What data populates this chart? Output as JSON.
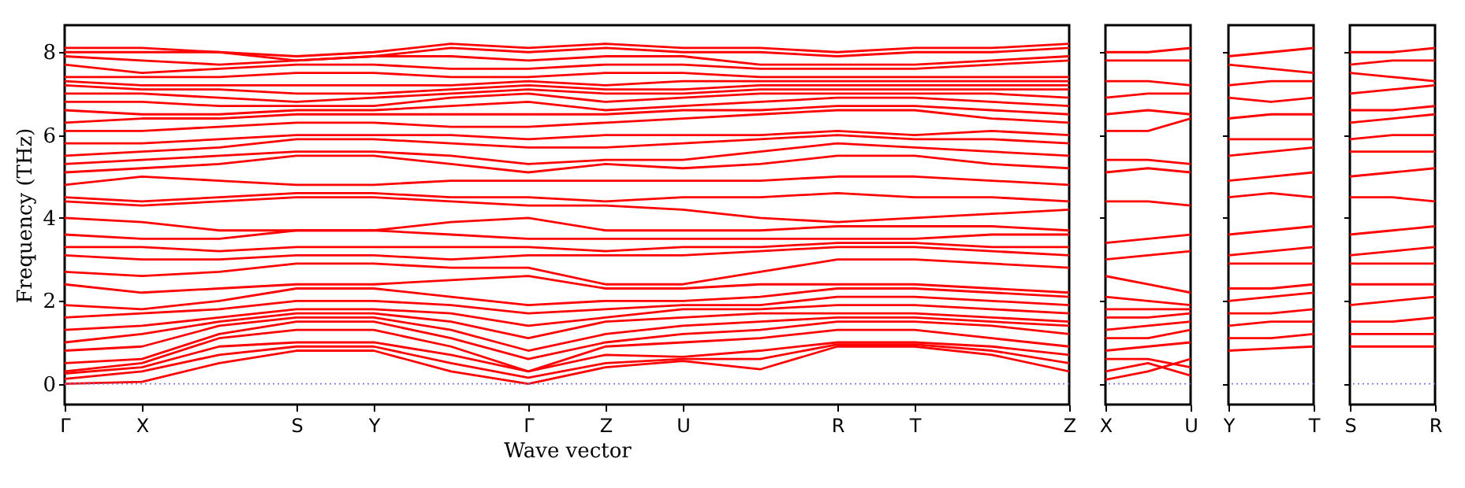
{
  "chart_data": [
    {
      "type": "line",
      "ylabel": "Frequency (THz)",
      "xlabel": "Wave vector",
      "ylim": [
        -0.5,
        8.65
      ],
      "yticks": [
        0,
        2,
        4,
        6,
        8
      ],
      "categories": [
        "Γ",
        "X",
        null,
        "S",
        "Y",
        null,
        "Γ",
        "Z",
        "U",
        null,
        "R",
        "T",
        null,
        "Z"
      ],
      "ref_lines": [
        {
          "axis": "y",
          "value": 0,
          "color": "#7777dd",
          "line_style": "dotted"
        }
      ],
      "series": [
        {
          "color": "#ff0000",
          "values": [
            0,
            0.05,
            0.5,
            0.8,
            0.8,
            0.3,
            0,
            0.4,
            0.55,
            0.35,
            0.9,
            0.9,
            0.7,
            0.3
          ]
        },
        {
          "color": "#ff0000",
          "values": [
            0.12,
            0.3,
            0.7,
            0.9,
            0.9,
            0.5,
            0.15,
            0.5,
            0.6,
            0.6,
            0.95,
            0.95,
            0.8,
            0.5
          ]
        },
        {
          "color": "#ff0000",
          "values": [
            0.25,
            0.4,
            0.9,
            1.0,
            1.0,
            0.7,
            0.3,
            0.7,
            0.65,
            0.8,
            1.0,
            1.0,
            0.9,
            0.7
          ]
        },
        {
          "color": "#ff0000",
          "values": [
            0.3,
            0.5,
            1.1,
            1.3,
            1.3,
            0.9,
            0.3,
            0.9,
            1.0,
            1.1,
            1.3,
            1.3,
            1.1,
            0.9
          ]
        },
        {
          "color": "#ff0000",
          "values": [
            0.5,
            0.6,
            1.2,
            1.5,
            1.5,
            1.1,
            0.6,
            1.0,
            1.2,
            1.3,
            1.5,
            1.5,
            1.4,
            1.2
          ]
        },
        {
          "color": "#ff0000",
          "values": [
            0.8,
            0.9,
            1.4,
            1.6,
            1.6,
            1.3,
            0.8,
            1.2,
            1.4,
            1.5,
            1.6,
            1.6,
            1.5,
            1.4
          ]
        },
        {
          "color": "#ff0000",
          "values": [
            1.0,
            1.2,
            1.5,
            1.7,
            1.7,
            1.5,
            1.1,
            1.5,
            1.6,
            1.7,
            1.7,
            1.7,
            1.6,
            1.5
          ]
        },
        {
          "color": "#ff0000",
          "values": [
            1.3,
            1.4,
            1.6,
            1.8,
            1.8,
            1.7,
            1.4,
            1.6,
            1.8,
            1.8,
            1.9,
            1.9,
            1.8,
            1.7
          ]
        },
        {
          "color": "#ff0000",
          "values": [
            1.6,
            1.7,
            1.8,
            2.0,
            2.0,
            1.9,
            1.7,
            1.8,
            1.9,
            1.9,
            2.1,
            2.1,
            2.0,
            1.9
          ]
        },
        {
          "color": "#ff0000",
          "values": [
            1.9,
            1.8,
            2.0,
            2.3,
            2.3,
            2.1,
            1.9,
            2.0,
            2.0,
            2.1,
            2.3,
            2.3,
            2.2,
            2.1
          ]
        },
        {
          "color": "#ff0000",
          "values": [
            2.4,
            2.2,
            2.3,
            2.4,
            2.4,
            2.5,
            2.6,
            2.3,
            2.3,
            2.4,
            2.4,
            2.4,
            2.3,
            2.2
          ]
        },
        {
          "color": "#ff0000",
          "values": [
            2.7,
            2.6,
            2.7,
            2.9,
            2.9,
            2.8,
            2.8,
            2.4,
            2.4,
            2.7,
            3.0,
            3.0,
            2.9,
            2.8
          ]
        },
        {
          "color": "#ff0000",
          "values": [
            3.1,
            3.0,
            3.0,
            3.1,
            3.1,
            3.0,
            3.1,
            3.1,
            3.1,
            3.2,
            3.3,
            3.3,
            3.2,
            3.1
          ]
        },
        {
          "color": "#ff0000",
          "values": [
            3.3,
            3.3,
            3.2,
            3.3,
            3.3,
            3.3,
            3.3,
            3.2,
            3.3,
            3.3,
            3.4,
            3.4,
            3.3,
            3.3
          ]
        },
        {
          "color": "#ff0000",
          "values": [
            3.6,
            3.5,
            3.5,
            3.7,
            3.7,
            3.6,
            3.5,
            3.5,
            3.5,
            3.5,
            3.5,
            3.5,
            3.6,
            3.6
          ]
        },
        {
          "color": "#ff0000",
          "values": [
            4.0,
            3.9,
            3.7,
            3.7,
            3.7,
            3.9,
            4.0,
            3.7,
            3.7,
            3.7,
            3.8,
            3.8,
            3.8,
            3.7
          ]
        },
        {
          "color": "#ff0000",
          "values": [
            4.4,
            4.3,
            4.4,
            4.5,
            4.5,
            4.4,
            4.3,
            4.3,
            4.2,
            4.0,
            3.9,
            4.0,
            4.1,
            4.2
          ]
        },
        {
          "color": "#ff0000",
          "values": [
            4.5,
            4.4,
            4.5,
            4.6,
            4.6,
            4.5,
            4.5,
            4.4,
            4.5,
            4.5,
            4.6,
            4.5,
            4.5,
            4.4
          ]
        },
        {
          "color": "#ff0000",
          "values": [
            4.8,
            5.0,
            4.9,
            4.8,
            4.8,
            4.9,
            4.9,
            4.9,
            4.9,
            4.9,
            5.0,
            5.0,
            4.9,
            4.8
          ]
        },
        {
          "color": "#ff0000",
          "values": [
            5.1,
            5.2,
            5.3,
            5.5,
            5.5,
            5.3,
            5.1,
            5.3,
            5.2,
            5.3,
            5.5,
            5.5,
            5.3,
            5.2
          ]
        },
        {
          "color": "#ff0000",
          "values": [
            5.3,
            5.4,
            5.5,
            5.6,
            5.6,
            5.5,
            5.3,
            5.4,
            5.4,
            5.6,
            5.8,
            5.7,
            5.6,
            5.5
          ]
        },
        {
          "color": "#ff0000",
          "values": [
            5.5,
            5.6,
            5.7,
            5.9,
            5.9,
            5.8,
            5.7,
            5.7,
            5.8,
            5.9,
            6.0,
            5.9,
            5.9,
            5.8
          ]
        },
        {
          "color": "#ff0000",
          "values": [
            5.8,
            5.8,
            5.9,
            6.0,
            6.0,
            6.0,
            5.9,
            6.0,
            6.0,
            6.0,
            6.1,
            6.0,
            6.1,
            6.0
          ]
        },
        {
          "color": "#ff0000",
          "values": [
            6.1,
            6.1,
            6.2,
            6.3,
            6.3,
            6.2,
            6.2,
            6.3,
            6.4,
            6.5,
            6.6,
            6.6,
            6.4,
            6.3
          ]
        },
        {
          "color": "#ff0000",
          "values": [
            6.3,
            6.4,
            6.4,
            6.5,
            6.5,
            6.5,
            6.5,
            6.5,
            6.6,
            6.6,
            6.7,
            6.7,
            6.6,
            6.5
          ]
        },
        {
          "color": "#ff0000",
          "values": [
            6.6,
            6.5,
            6.5,
            6.6,
            6.6,
            6.7,
            6.8,
            6.6,
            6.7,
            6.8,
            6.9,
            6.9,
            6.8,
            6.7
          ]
        },
        {
          "color": "#ff0000",
          "values": [
            6.8,
            6.8,
            6.7,
            6.7,
            6.7,
            6.9,
            7.0,
            6.8,
            6.9,
            7.0,
            7.0,
            7.0,
            7.0,
            6.9
          ]
        },
        {
          "color": "#ff0000",
          "values": [
            7.0,
            7.0,
            6.9,
            6.8,
            6.9,
            7.0,
            7.1,
            7.0,
            7.0,
            7.1,
            7.1,
            7.1,
            7.1,
            7.1
          ]
        },
        {
          "color": "#ff0000",
          "values": [
            7.2,
            7.1,
            7.1,
            7.0,
            7.0,
            7.1,
            7.2,
            7.1,
            7.1,
            7.2,
            7.2,
            7.2,
            7.2,
            7.2
          ]
        },
        {
          "color": "#ff0000",
          "values": [
            7.3,
            7.2,
            7.2,
            7.2,
            7.2,
            7.2,
            7.3,
            7.2,
            7.3,
            7.3,
            7.3,
            7.3,
            7.3,
            7.3
          ]
        },
        {
          "color": "#ff0000",
          "values": [
            7.4,
            7.4,
            7.4,
            7.5,
            7.5,
            7.4,
            7.4,
            7.5,
            7.5,
            7.4,
            7.4,
            7.4,
            7.4,
            7.4
          ]
        },
        {
          "color": "#ff0000",
          "values": [
            7.7,
            7.5,
            7.6,
            7.7,
            7.7,
            7.6,
            7.6,
            7.7,
            7.7,
            7.6,
            7.6,
            7.6,
            7.7,
            7.8
          ]
        },
        {
          "color": "#ff0000",
          "values": [
            7.9,
            7.8,
            7.7,
            7.8,
            7.9,
            7.9,
            7.8,
            7.9,
            7.9,
            7.7,
            7.7,
            7.7,
            7.8,
            7.9
          ]
        },
        {
          "color": "#ff0000",
          "values": [
            8.0,
            8.0,
            8.0,
            7.8,
            7.9,
            8.1,
            8.0,
            8.1,
            8.0,
            8.0,
            7.9,
            8.0,
            8.0,
            8.1
          ]
        },
        {
          "color": "#ff0000",
          "values": [
            8.1,
            8.1,
            8.0,
            7.9,
            8.0,
            8.2,
            8.1,
            8.2,
            8.1,
            8.1,
            8.0,
            8.1,
            8.1,
            8.2
          ]
        }
      ]
    },
    {
      "type": "line",
      "tick_labels": "x",
      "ylim": [
        -0.5,
        8.65
      ],
      "yticks": [
        0,
        2,
        4,
        6,
        8
      ],
      "categories": [
        "X",
        null,
        "U"
      ],
      "ref_lines": [
        {
          "axis": "y",
          "value": 0,
          "color": "#7777dd",
          "line_style": "dotted"
        }
      ],
      "series": [
        {
          "color": "#ff0000",
          "values": [
            0.1,
            0.3,
            0.6
          ]
        },
        {
          "color": "#ff0000",
          "values": [
            0.3,
            0.5,
            0.2
          ]
        },
        {
          "color": "#ff0000",
          "values": [
            0.6,
            0.6,
            0.4
          ]
        },
        {
          "color": "#ff0000",
          "values": [
            0.8,
            0.9,
            1.0
          ]
        },
        {
          "color": "#ff0000",
          "values": [
            1.1,
            1.1,
            1.3
          ]
        },
        {
          "color": "#ff0000",
          "values": [
            1.3,
            1.4,
            1.5
          ]
        },
        {
          "color": "#ff0000",
          "values": [
            1.6,
            1.6,
            1.7
          ]
        },
        {
          "color": "#ff0000",
          "values": [
            1.8,
            1.8,
            1.8
          ]
        },
        {
          "color": "#ff0000",
          "values": [
            2.1,
            2.0,
            1.9
          ]
        },
        {
          "color": "#ff0000",
          "values": [
            2.6,
            2.4,
            2.2
          ]
        },
        {
          "color": "#ff0000",
          "values": [
            3.0,
            3.1,
            3.2
          ]
        },
        {
          "color": "#ff0000",
          "values": [
            3.4,
            3.5,
            3.6
          ]
        },
        {
          "color": "#ff0000",
          "values": [
            4.4,
            4.4,
            4.3
          ]
        },
        {
          "color": "#ff0000",
          "values": [
            5.1,
            5.2,
            5.1
          ]
        },
        {
          "color": "#ff0000",
          "values": [
            5.4,
            5.4,
            5.3
          ]
        },
        {
          "color": "#ff0000",
          "values": [
            6.1,
            6.1,
            6.4
          ]
        },
        {
          "color": "#ff0000",
          "values": [
            6.5,
            6.6,
            6.5
          ]
        },
        {
          "color": "#ff0000",
          "values": [
            6.9,
            7.0,
            7.0
          ]
        },
        {
          "color": "#ff0000",
          "values": [
            7.3,
            7.3,
            7.2
          ]
        },
        {
          "color": "#ff0000",
          "values": [
            7.8,
            7.8,
            7.8
          ]
        },
        {
          "color": "#ff0000",
          "values": [
            8.0,
            8.0,
            8.1
          ]
        }
      ]
    },
    {
      "type": "line",
      "tick_labels": "x",
      "ylim": [
        -0.5,
        8.65
      ],
      "yticks": [
        0,
        2,
        4,
        6,
        8
      ],
      "categories": [
        "Y",
        null,
        "T"
      ],
      "ref_lines": [
        {
          "axis": "y",
          "value": 0,
          "color": "#7777dd",
          "line_style": "dotted"
        }
      ],
      "series": [
        {
          "color": "#ff0000",
          "values": [
            0.8,
            0.85,
            0.9
          ]
        },
        {
          "color": "#ff0000",
          "values": [
            1.1,
            1.1,
            1.2
          ]
        },
        {
          "color": "#ff0000",
          "values": [
            1.4,
            1.5,
            1.5
          ]
        },
        {
          "color": "#ff0000",
          "values": [
            1.7,
            1.7,
            1.8
          ]
        },
        {
          "color": "#ff0000",
          "values": [
            2.0,
            2.1,
            2.2
          ]
        },
        {
          "color": "#ff0000",
          "values": [
            2.3,
            2.3,
            2.4
          ]
        },
        {
          "color": "#ff0000",
          "values": [
            2.9,
            2.9,
            2.9
          ]
        },
        {
          "color": "#ff0000",
          "values": [
            3.1,
            3.2,
            3.3
          ]
        },
        {
          "color": "#ff0000",
          "values": [
            3.6,
            3.7,
            3.8
          ]
        },
        {
          "color": "#ff0000",
          "values": [
            4.5,
            4.6,
            4.5
          ]
        },
        {
          "color": "#ff0000",
          "values": [
            4.9,
            5.0,
            5.1
          ]
        },
        {
          "color": "#ff0000",
          "values": [
            5.5,
            5.6,
            5.7
          ]
        },
        {
          "color": "#ff0000",
          "values": [
            5.9,
            5.9,
            5.9
          ]
        },
        {
          "color": "#ff0000",
          "values": [
            6.4,
            6.5,
            6.5
          ]
        },
        {
          "color": "#ff0000",
          "values": [
            6.9,
            6.8,
            6.9
          ]
        },
        {
          "color": "#ff0000",
          "values": [
            7.2,
            7.3,
            7.3
          ]
        },
        {
          "color": "#ff0000",
          "values": [
            7.7,
            7.6,
            7.5
          ]
        },
        {
          "color": "#ff0000",
          "values": [
            7.9,
            8.0,
            8.1
          ]
        }
      ]
    },
    {
      "type": "line",
      "tick_labels": "x",
      "ylim": [
        -0.5,
        8.65
      ],
      "yticks": [
        0,
        2,
        4,
        6,
        8
      ],
      "categories": [
        "S",
        null,
        "R"
      ],
      "ref_lines": [
        {
          "axis": "y",
          "value": 0,
          "color": "#7777dd",
          "line_style": "dotted"
        }
      ],
      "series": [
        {
          "color": "#ff0000",
          "values": [
            0.9,
            0.9,
            0.9
          ]
        },
        {
          "color": "#ff0000",
          "values": [
            1.2,
            1.2,
            1.2
          ]
        },
        {
          "color": "#ff0000",
          "values": [
            1.5,
            1.5,
            1.6
          ]
        },
        {
          "color": "#ff0000",
          "values": [
            1.9,
            2.0,
            2.1
          ]
        },
        {
          "color": "#ff0000",
          "values": [
            2.4,
            2.4,
            2.4
          ]
        },
        {
          "color": "#ff0000",
          "values": [
            2.9,
            2.9,
            2.9
          ]
        },
        {
          "color": "#ff0000",
          "values": [
            3.1,
            3.2,
            3.3
          ]
        },
        {
          "color": "#ff0000",
          "values": [
            3.6,
            3.7,
            3.8
          ]
        },
        {
          "color": "#ff0000",
          "values": [
            4.5,
            4.5,
            4.4
          ]
        },
        {
          "color": "#ff0000",
          "values": [
            5.0,
            5.1,
            5.2
          ]
        },
        {
          "color": "#ff0000",
          "values": [
            5.6,
            5.6,
            5.6
          ]
        },
        {
          "color": "#ff0000",
          "values": [
            5.9,
            6.0,
            6.0
          ]
        },
        {
          "color": "#ff0000",
          "values": [
            6.3,
            6.4,
            6.5
          ]
        },
        {
          "color": "#ff0000",
          "values": [
            6.6,
            6.6,
            6.7
          ]
        },
        {
          "color": "#ff0000",
          "values": [
            7.0,
            7.1,
            7.2
          ]
        },
        {
          "color": "#ff0000",
          "values": [
            7.5,
            7.4,
            7.3
          ]
        },
        {
          "color": "#ff0000",
          "values": [
            7.7,
            7.8,
            7.8
          ]
        },
        {
          "color": "#ff0000",
          "values": [
            8.0,
            8.0,
            8.1
          ]
        }
      ]
    }
  ]
}
